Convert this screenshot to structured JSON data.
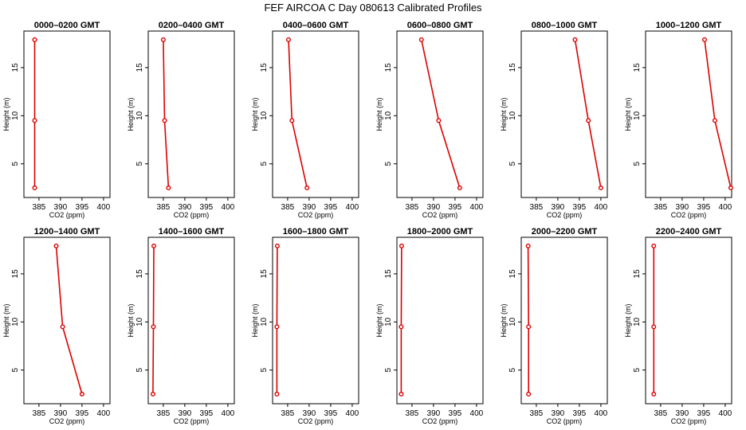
{
  "title": "FEF AIRCOA C  Day 080613  Calibrated Profiles",
  "chart_data": {
    "type": "line",
    "xlabel": "CO2 (ppm)",
    "ylabel": "Height (m)",
    "xlim": [
      381.5,
      401.5
    ],
    "ylim": [
      1.5,
      18.8
    ],
    "xticks": [
      "385",
      "390",
      "395",
      "400"
    ],
    "yticks": [
      "5",
      "10",
      "15"
    ],
    "color": "#dd0000",
    "panels": [
      {
        "name": "0000–0200 GMT",
        "points": [
          {
            "x": 384.0,
            "y": 17.9
          },
          {
            "x": 384.0,
            "y": 9.5
          },
          {
            "x": 384.0,
            "y": 2.5
          }
        ]
      },
      {
        "name": "0200–0400 GMT",
        "points": [
          {
            "x": 385.0,
            "y": 17.9
          },
          {
            "x": 385.3,
            "y": 9.5
          },
          {
            "x": 386.2,
            "y": 2.5
          }
        ]
      },
      {
        "name": "0400–0600 GMT",
        "points": [
          {
            "x": 385.2,
            "y": 17.9
          },
          {
            "x": 386.0,
            "y": 9.5
          },
          {
            "x": 389.5,
            "y": 2.5
          }
        ]
      },
      {
        "name": "0600–0800 GMT",
        "points": [
          {
            "x": 387.2,
            "y": 17.9
          },
          {
            "x": 391.2,
            "y": 9.5
          },
          {
            "x": 396.1,
            "y": 2.5
          }
        ]
      },
      {
        "name": "0800–1000 GMT",
        "points": [
          {
            "x": 394.0,
            "y": 17.9
          },
          {
            "x": 397.1,
            "y": 9.5
          },
          {
            "x": 400.0,
            "y": 2.5
          }
        ]
      },
      {
        "name": "1000–1200 GMT",
        "points": [
          {
            "x": 395.2,
            "y": 17.9
          },
          {
            "x": 397.6,
            "y": 9.5
          },
          {
            "x": 401.3,
            "y": 2.5
          }
        ]
      },
      {
        "name": "1200–1400 GMT",
        "points": [
          {
            "x": 389.0,
            "y": 17.9
          },
          {
            "x": 390.5,
            "y": 9.5
          },
          {
            "x": 395.0,
            "y": 2.5
          }
        ]
      },
      {
        "name": "1400–1600 GMT",
        "points": [
          {
            "x": 382.8,
            "y": 17.9
          },
          {
            "x": 382.7,
            "y": 9.5
          },
          {
            "x": 382.6,
            "y": 2.5
          }
        ]
      },
      {
        "name": "1600–1800 GMT",
        "points": [
          {
            "x": 382.6,
            "y": 17.9
          },
          {
            "x": 382.5,
            "y": 9.5
          },
          {
            "x": 382.5,
            "y": 2.5
          }
        ]
      },
      {
        "name": "1800–2000 GMT",
        "points": [
          {
            "x": 382.6,
            "y": 17.9
          },
          {
            "x": 382.5,
            "y": 9.5
          },
          {
            "x": 382.5,
            "y": 2.5
          }
        ]
      },
      {
        "name": "2000–2200 GMT",
        "points": [
          {
            "x": 383.1,
            "y": 17.9
          },
          {
            "x": 383.2,
            "y": 9.5
          },
          {
            "x": 383.2,
            "y": 2.5
          }
        ]
      },
      {
        "name": "2200–2400 GMT",
        "points": [
          {
            "x": 383.4,
            "y": 17.9
          },
          {
            "x": 383.4,
            "y": 9.5
          },
          {
            "x": 383.4,
            "y": 2.5
          }
        ]
      }
    ]
  }
}
